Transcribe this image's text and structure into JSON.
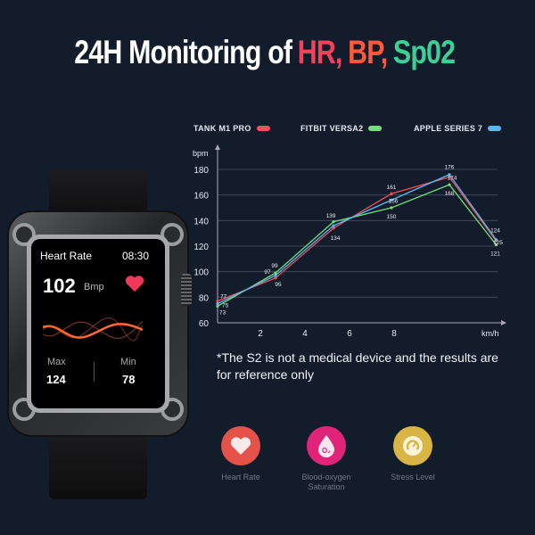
{
  "title": {
    "part1": "24H Monitoring of",
    "hr": "HR,",
    "bp": "BP,",
    "spo2": "Sp02",
    "colors": {
      "hr": "#f4425b",
      "bp": "#ff5a3c",
      "spo2": "#3ccf96"
    }
  },
  "watch": {
    "screen_title": "Heart Rate",
    "time": "08:30",
    "heart_rate": "102",
    "unit": "Bmp",
    "max_label": "Max",
    "max_value": "124",
    "min_label": "Min",
    "min_value": "78"
  },
  "note": "*The S2 is not a medical device and the results are for reference only",
  "features": [
    {
      "label": "Heart Rate",
      "icon": "heart-icon",
      "color": "#e4524a"
    },
    {
      "label": "Blood-oxygen Saturation",
      "icon": "oxygen-drop-icon",
      "color": "#e0247a"
    },
    {
      "label": "Stress Level",
      "icon": "gauge-icon",
      "color": "#d9b546"
    }
  ],
  "chart_data": {
    "type": "line",
    "ylabel": "bpm",
    "xlabel": "km/h",
    "ylim": [
      60,
      180
    ],
    "yticks": [
      "60",
      "80",
      "100",
      "120",
      "140",
      "160",
      "180"
    ],
    "xticks": [
      "2",
      "4",
      "6",
      "8"
    ],
    "grid": true,
    "legend": "top",
    "x": [
      0,
      2.6,
      5.2,
      7.8,
      10.4,
      12.5
    ],
    "series": [
      {
        "name": "TANK M1 PRO",
        "color": "#f0505a",
        "values": [
          77,
          95,
          134,
          161,
          174,
          124
        ],
        "labels": [
          "77",
          "95",
          "134",
          "161",
          "174",
          "124"
        ]
      },
      {
        "name": "FITBIT VERSA2",
        "color": "#72e07a",
        "values": [
          73,
          99,
          139,
          150,
          168,
          121
        ],
        "labels": [
          "73",
          "99",
          "139",
          "150",
          "168",
          "121"
        ]
      },
      {
        "name": "APPLE SERIES 7",
        "color": "#5ab8ef",
        "values": [
          75,
          97,
          136,
          156,
          176,
          125
        ],
        "labels": [
          "75",
          "97",
          "",
          "156",
          "176",
          "125"
        ]
      }
    ]
  }
}
